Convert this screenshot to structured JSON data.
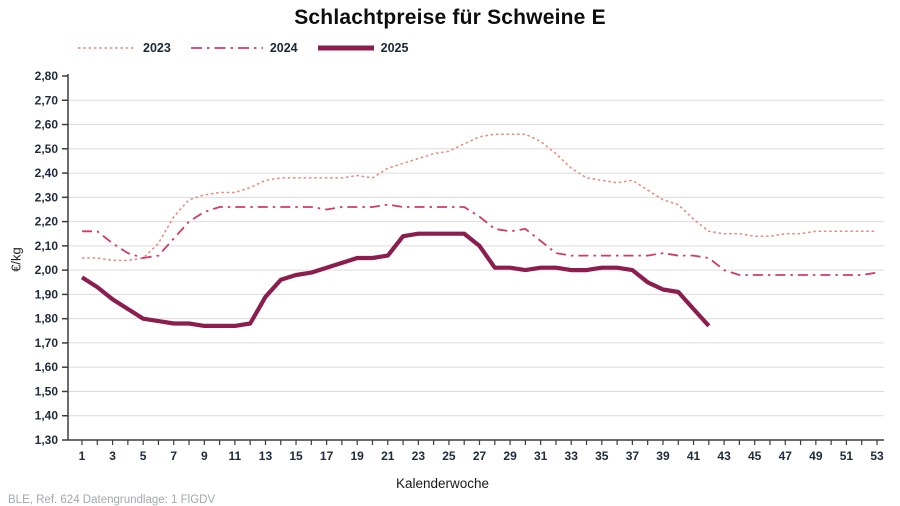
{
  "title": "Schlachtpreise für Schweine E",
  "footer": "BLE, Ref. 624 Datengrundlage: 1 FlGDV",
  "legend": {
    "items": [
      {
        "label": "2023"
      },
      {
        "label": "2024"
      },
      {
        "label": "2025"
      }
    ]
  },
  "colors": {
    "series_2023": "#ee8576",
    "series_2024": "#d23a69",
    "series_2025": "#8b1d4f",
    "gridline": "#dcdcdc",
    "axis": "#3c3c3c",
    "tick_label": "#202c3d"
  },
  "chart_data": {
    "type": "line",
    "title": "Schlachtpreise für Schweine E",
    "xlabel": "Kalenderwoche",
    "ylabel": "€/kg",
    "ylim": [
      1.3,
      2.8
    ],
    "y_step": 0.1,
    "xlim": [
      1,
      53
    ],
    "x_tick_labels": [
      1,
      3,
      5,
      7,
      9,
      11,
      13,
      15,
      17,
      19,
      21,
      23,
      25,
      27,
      29,
      31,
      33,
      35,
      37,
      39,
      41,
      43,
      45,
      47,
      49,
      51,
      53
    ],
    "grid": "horizontal",
    "legend_position": "top-left",
    "x_unit": "Kalenderwoche",
    "y_unit": "€/kg",
    "series": [
      {
        "name": "2023",
        "style": "dotted",
        "color": "#ee8576",
        "x_start": 1,
        "values": [
          2.05,
          2.05,
          2.04,
          2.04,
          2.05,
          2.11,
          2.22,
          2.29,
          2.31,
          2.32,
          2.32,
          2.34,
          2.37,
          2.38,
          2.38,
          2.38,
          2.38,
          2.38,
          2.39,
          2.38,
          2.42,
          2.44,
          2.46,
          2.48,
          2.49,
          2.52,
          2.55,
          2.56,
          2.56,
          2.56,
          2.53,
          2.48,
          2.42,
          2.38,
          2.37,
          2.36,
          2.37,
          2.33,
          2.29,
          2.27,
          2.21,
          2.16,
          2.15,
          2.15,
          2.14,
          2.14,
          2.15,
          2.15,
          2.16,
          2.16,
          2.16,
          2.16,
          2.16
        ]
      },
      {
        "name": "2024",
        "style": "dashdot",
        "color": "#d23a69",
        "x_start": 1,
        "values": [
          2.16,
          2.16,
          2.11,
          2.07,
          2.05,
          2.06,
          2.13,
          2.2,
          2.24,
          2.26,
          2.26,
          2.26,
          2.26,
          2.26,
          2.26,
          2.26,
          2.25,
          2.26,
          2.26,
          2.26,
          2.27,
          2.26,
          2.26,
          2.26,
          2.26,
          2.26,
          2.22,
          2.17,
          2.16,
          2.17,
          2.12,
          2.07,
          2.06,
          2.06,
          2.06,
          2.06,
          2.06,
          2.06,
          2.07,
          2.06,
          2.06,
          2.05,
          2.0,
          1.98,
          1.98,
          1.98,
          1.98,
          1.98,
          1.98,
          1.98,
          1.98,
          1.98,
          1.99
        ]
      },
      {
        "name": "2025",
        "style": "solid",
        "color": "#8b1d4f",
        "x_start": 1,
        "values": [
          1.97,
          1.93,
          1.88,
          1.84,
          1.8,
          1.79,
          1.78,
          1.78,
          1.77,
          1.77,
          1.77,
          1.78,
          1.89,
          1.96,
          1.98,
          1.99,
          2.01,
          2.03,
          2.05,
          2.05,
          2.06,
          2.14,
          2.15,
          2.15,
          2.15,
          2.15,
          2.1,
          2.01,
          2.01,
          2.0,
          2.01,
          2.01,
          2.0,
          2.0,
          2.01,
          2.01,
          2.0,
          1.95,
          1.92,
          1.91,
          1.84,
          1.77
        ]
      }
    ]
  }
}
